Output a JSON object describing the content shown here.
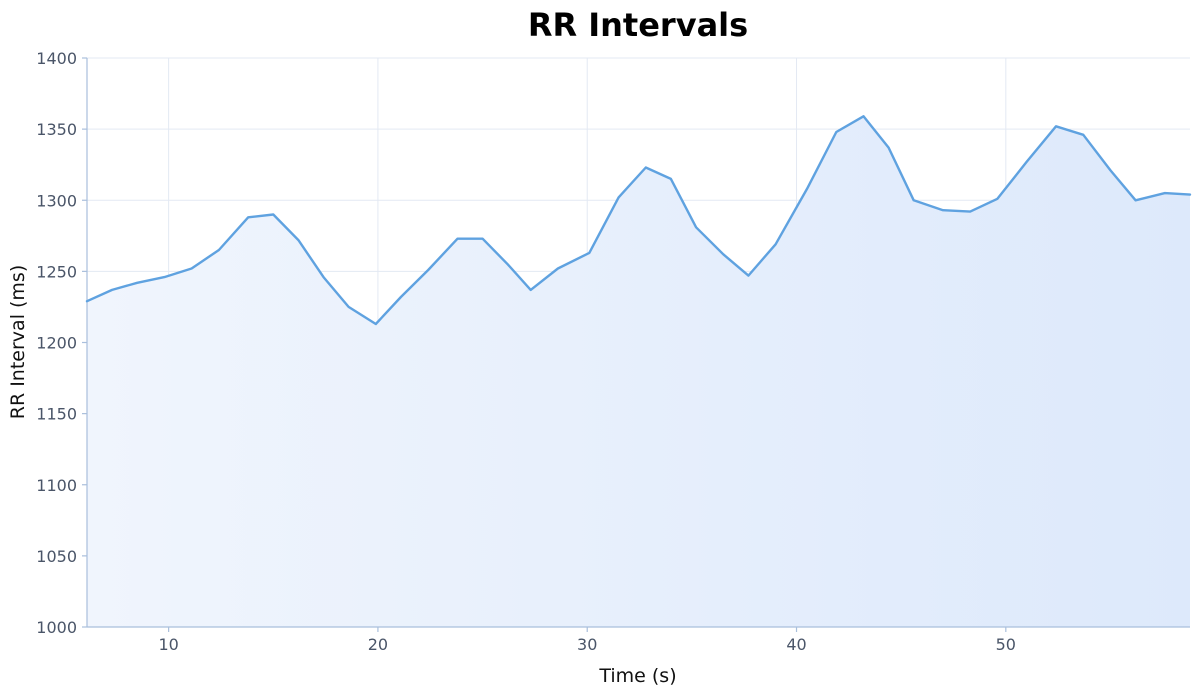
{
  "chart_data": {
    "type": "area",
    "title": "RR Intervals",
    "xlabel": "Time (s)",
    "ylabel": "RR Interval (ms)",
    "xlim": [
      6.1,
      58.8
    ],
    "ylim": [
      1000,
      1400
    ],
    "xticks": [
      10,
      20,
      30,
      40,
      50
    ],
    "yticks": [
      1000,
      1050,
      1100,
      1150,
      1200,
      1250,
      1300,
      1350,
      1400
    ],
    "grid": true,
    "legend": "none",
    "colors": {
      "line": "#5fa2e0",
      "fill_light": "#f0f5fd",
      "fill_dark": "#dde9fb"
    },
    "x": [
      6.1,
      7.3,
      8.5,
      9.8,
      11.1,
      12.4,
      13.8,
      15.0,
      16.2,
      17.4,
      18.6,
      19.9,
      21.1,
      22.4,
      23.8,
      25.0,
      26.2,
      27.3,
      28.6,
      30.1,
      31.5,
      32.8,
      34.0,
      35.2,
      36.5,
      37.7,
      39.0,
      40.5,
      41.9,
      43.2,
      44.4,
      45.6,
      47.0,
      48.3,
      49.6,
      51.0,
      52.4,
      53.7,
      55.0,
      56.2,
      57.6,
      58.8
    ],
    "values": [
      1229,
      1237,
      1242,
      1246,
      1252,
      1265,
      1288,
      1290,
      1272,
      1246,
      1225,
      1213,
      1232,
      1251,
      1273,
      1273,
      1255,
      1237,
      1252,
      1263,
      1302,
      1323,
      1315,
      1281,
      1262,
      1247,
      1269,
      1308,
      1348,
      1359,
      1337,
      1300,
      1293,
      1292,
      1301,
      1327,
      1352,
      1346,
      1321,
      1300,
      1305,
      1304
    ]
  }
}
